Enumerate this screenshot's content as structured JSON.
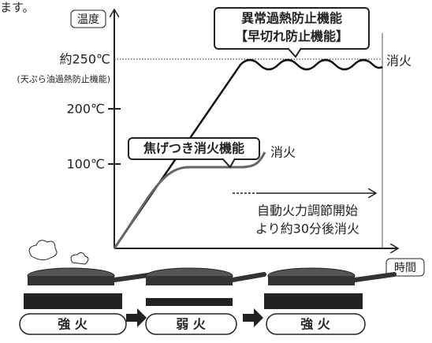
{
  "intro": "ます。",
  "axes": {
    "y_label": "温度",
    "x_label": "時間"
  },
  "levels": [
    {
      "label": "約250℃",
      "note": "(天ぷら油過熱防止機能)"
    },
    {
      "label": "200℃"
    },
    {
      "label": "100℃"
    }
  ],
  "overheat": {
    "title": "異常過熱防止機能",
    "subtitle": "【早切れ防止機能】",
    "end": "消火"
  },
  "scorch": {
    "title": "焦げつき消火機能",
    "end": "消火"
  },
  "auto_off": {
    "line1": "自動火力調節開始",
    "line2": "より約30分後消火"
  },
  "flames": [
    "強 火",
    "弱 火",
    "強 火"
  ]
}
